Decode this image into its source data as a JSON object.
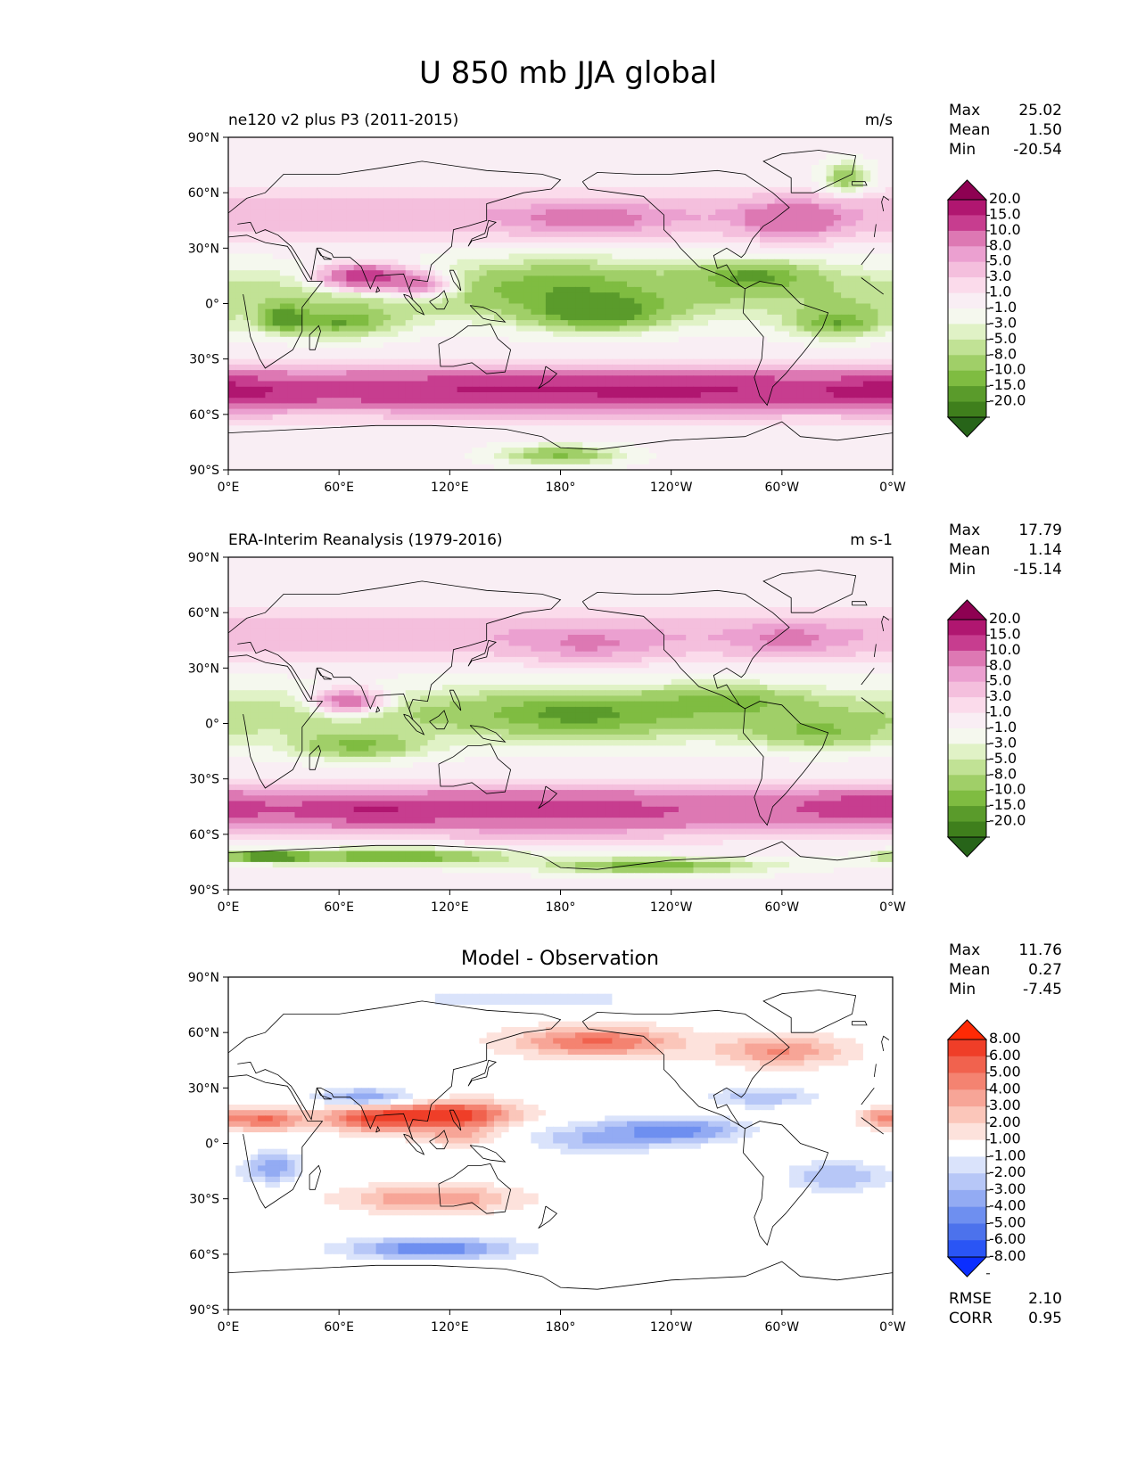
{
  "figure": {
    "title": "U 850 mb JJA global"
  },
  "colors": {
    "full_fills": [
      "#276419",
      "#3f7f1c",
      "#5a9b2b",
      "#7fbc41",
      "#a0cf68",
      "#c1e295",
      "#e0f2c6",
      "#f5f8ee",
      "#f9eef4",
      "#fbdbeb",
      "#f4bfdd",
      "#eba0d0",
      "#dd78b3",
      "#c73d8f",
      "#b01670",
      "#8e0152"
    ],
    "diff_fills": [
      "#0b2eff",
      "#2a55f5",
      "#4c72ec",
      "#6e8ff0",
      "#93abf3",
      "#b7c7f7",
      "#dae3fb",
      "#ffffff",
      "#fde2dc",
      "#fbc6ba",
      "#f7a597",
      "#f48371",
      "#f1624e",
      "#ef3e28",
      "#ff2a05"
    ],
    "map_white": "#f7f7f7",
    "coast": "#000000"
  },
  "chart_data": [
    {
      "type": "heatmap",
      "panel": "model",
      "title_left": "ne120 v2 plus P3 (2011-2015)",
      "title_right": "m/s",
      "units": "m/s",
      "xlim": [
        0,
        360
      ],
      "ylim": [
        -90,
        90
      ],
      "xticks": [
        "0°E",
        "60°E",
        "120°E",
        "180°",
        "120°W",
        "60°W",
        "0°W"
      ],
      "yticks": [
        "90°N",
        "60°N",
        "30°N",
        "0°",
        "30°S",
        "60°S",
        "90°S"
      ],
      "stats": {
        "labels": [
          "Max",
          "Mean",
          "Min"
        ],
        "values": [
          "25.02",
          "1.50",
          "-20.54"
        ]
      },
      "levels": [
        "20.0",
        "15.0",
        "10.0",
        "8.0",
        "5.0",
        "3.0",
        "1.0",
        "-1.0",
        "-3.0",
        "-5.0",
        "-8.0",
        "-10.0",
        "-15.0",
        "-20.0"
      ],
      "features": [
        {
          "lon": 150,
          "lat": -47,
          "value": 16,
          "rlon": 150,
          "rlat": 10
        },
        {
          "lon": 260,
          "lat": -47,
          "value": 14,
          "rlon": 80,
          "rlat": 9
        },
        {
          "lon": 355,
          "lat": -48,
          "value": 17,
          "rlon": 40,
          "rlat": 8
        },
        {
          "lon": 75,
          "lat": 14,
          "value": 21,
          "rlon": 25,
          "rlat": 7
        },
        {
          "lon": 105,
          "lat": 10,
          "value": 14,
          "rlon": 20,
          "rlat": 7
        },
        {
          "lon": 305,
          "lat": 45,
          "value": 12,
          "rlon": 25,
          "rlat": 10
        },
        {
          "lon": 195,
          "lat": 45,
          "value": 9,
          "rlon": 40,
          "rlat": 9
        },
        {
          "lon": 200,
          "lat": -5,
          "value": -14,
          "rlon": 35,
          "rlat": 9
        },
        {
          "lon": 180,
          "lat": 10,
          "value": -8,
          "rlon": 60,
          "rlat": 14
        },
        {
          "lon": 285,
          "lat": 15,
          "value": -10,
          "rlon": 35,
          "rlat": 8
        },
        {
          "lon": 330,
          "lat": -10,
          "value": -10,
          "rlon": 25,
          "rlat": 8
        },
        {
          "lon": 60,
          "lat": -10,
          "value": -10,
          "rlon": 30,
          "rlat": 8
        },
        {
          "lon": 30,
          "lat": -8,
          "value": -12,
          "rlon": 12,
          "rlat": 7
        },
        {
          "lon": 180,
          "lat": -82,
          "value": -9,
          "rlon": 30,
          "rlat": 5
        },
        {
          "lon": 335,
          "lat": 68,
          "value": -8,
          "rlon": 12,
          "rlat": 8
        }
      ]
    },
    {
      "type": "heatmap",
      "panel": "observation",
      "title_left": "ERA-Interim Reanalysis (1979-2016)",
      "title_right": "m s-1",
      "units": "m s-1",
      "xlim": [
        0,
        360
      ],
      "ylim": [
        -90,
        90
      ],
      "xticks": [
        "0°E",
        "60°E",
        "120°E",
        "180°",
        "120°W",
        "60°W",
        "0°W"
      ],
      "yticks": [
        "90°N",
        "60°N",
        "30°N",
        "0°",
        "30°S",
        "60°S",
        "90°S"
      ],
      "stats": {
        "labels": [
          "Max",
          "Mean",
          "Min"
        ],
        "values": [
          "17.79",
          "1.14",
          "-15.14"
        ]
      },
      "levels": [
        "20.0",
        "15.0",
        "10.0",
        "8.0",
        "5.0",
        "3.0",
        "1.0",
        "-1.0",
        "-3.0",
        "-5.0",
        "-8.0",
        "-10.0",
        "-15.0",
        "-20.0"
      ],
      "features": [
        {
          "lon": 80,
          "lat": -47,
          "value": 16,
          "rlon": 45,
          "rlat": 7
        },
        {
          "lon": 180,
          "lat": -47,
          "value": 13,
          "rlon": 100,
          "rlat": 11
        },
        {
          "lon": 345,
          "lat": -45,
          "value": 15,
          "rlon": 40,
          "rlat": 8
        },
        {
          "lon": 65,
          "lat": 12,
          "value": 14,
          "rlon": 20,
          "rlat": 7
        },
        {
          "lon": 305,
          "lat": 45,
          "value": 8,
          "rlon": 30,
          "rlat": 9
        },
        {
          "lon": 195,
          "lat": 42,
          "value": 8,
          "rlon": 40,
          "rlat": 9
        },
        {
          "lon": 190,
          "lat": 5,
          "value": -9,
          "rlon": 60,
          "rlat": 12
        },
        {
          "lon": 270,
          "lat": 12,
          "value": -8,
          "rlon": 40,
          "rlat": 8
        },
        {
          "lon": 320,
          "lat": -5,
          "value": -8,
          "rlon": 35,
          "rlat": 8
        },
        {
          "lon": 70,
          "lat": -12,
          "value": -9,
          "rlon": 35,
          "rlat": 7
        },
        {
          "lon": 90,
          "lat": -72,
          "value": -12,
          "rlon": 60,
          "rlat": 4
        },
        {
          "lon": 20,
          "lat": -72,
          "value": -14,
          "rlon": 25,
          "rlat": 3
        },
        {
          "lon": 230,
          "lat": -77,
          "value": -10,
          "rlon": 60,
          "rlat": 4
        }
      ]
    },
    {
      "type": "heatmap",
      "panel": "difference",
      "title_center": "Model - Observation",
      "units": "m/s",
      "xlim": [
        0,
        360
      ],
      "ylim": [
        -90,
        90
      ],
      "xticks": [
        "0°E",
        "60°E",
        "120°E",
        "180°",
        "120°W",
        "60°W",
        "0°W"
      ],
      "yticks": [
        "90°N",
        "60°N",
        "30°N",
        "0°",
        "30°S",
        "60°S",
        "90°S"
      ],
      "stats": {
        "labels": [
          "Max",
          "Mean",
          "Min"
        ],
        "values": [
          "11.76",
          "0.27",
          "-7.45"
        ]
      },
      "extra_stats": {
        "labels": [
          "RMSE",
          "CORR"
        ],
        "values": [
          "2.10",
          "0.95"
        ]
      },
      "levels": [
        "8.00",
        "6.00",
        "5.00",
        "4.00",
        "3.00",
        "2.00",
        "1.00",
        "-1.00",
        "-2.00",
        "-3.00",
        "-4.00",
        "-5.00",
        "-6.00",
        "-8.00"
      ],
      "features": [
        {
          "lon": 120,
          "lat": 15,
          "value": 7,
          "rlon": 35,
          "rlat": 8
        },
        {
          "lon": 80,
          "lat": 14,
          "value": 6,
          "rlon": 30,
          "rlat": 7
        },
        {
          "lon": 20,
          "lat": 13,
          "value": 5,
          "rlon": 20,
          "rlat": 6
        },
        {
          "lon": 355,
          "lat": 14,
          "value": 4,
          "rlon": 12,
          "rlat": 5
        },
        {
          "lon": 110,
          "lat": -30,
          "value": 4,
          "rlon": 45,
          "rlat": 7
        },
        {
          "lon": 200,
          "lat": 55,
          "value": 5,
          "rlon": 45,
          "rlat": 8
        },
        {
          "lon": 300,
          "lat": 50,
          "value": 4,
          "rlon": 35,
          "rlat": 8
        },
        {
          "lon": 125,
          "lat": 4,
          "value": 3,
          "rlon": 20,
          "rlat": 5
        },
        {
          "lon": 240,
          "lat": 7,
          "value": -5,
          "rlon": 40,
          "rlat": 7
        },
        {
          "lon": 200,
          "lat": 2,
          "value": -3,
          "rlon": 40,
          "rlat": 8
        },
        {
          "lon": 110,
          "lat": -57,
          "value": -5,
          "rlon": 50,
          "rlat": 6
        },
        {
          "lon": 25,
          "lat": -13,
          "value": -4,
          "rlon": 15,
          "rlat": 9
        },
        {
          "lon": 75,
          "lat": 25,
          "value": -4,
          "rlon": 30,
          "rlat": 5
        },
        {
          "lon": 290,
          "lat": 25,
          "value": -3,
          "rlon": 30,
          "rlat": 6
        },
        {
          "lon": 330,
          "lat": -18,
          "value": -3,
          "rlon": 30,
          "rlat": 9
        },
        {
          "lon": 160,
          "lat": 78,
          "value": -2,
          "rlon": 70,
          "rlat": 6
        }
      ]
    }
  ]
}
